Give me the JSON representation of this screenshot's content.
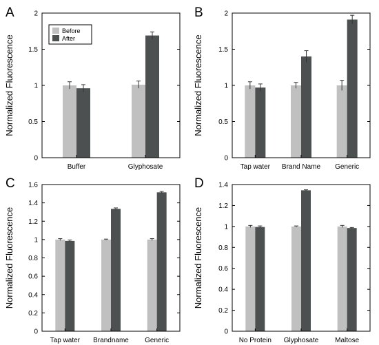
{
  "colors": {
    "before": "#c0c0c0",
    "after": "#4d5050",
    "frame": "#000000",
    "error": "#333333"
  },
  "chart_data": [
    {
      "panel": "A",
      "type": "bar",
      "ylabel": "Normalized Fluorescence",
      "ylim": [
        0,
        2
      ],
      "yticks": [
        "0",
        "0.5",
        "1",
        "1.5",
        "2"
      ],
      "categories": [
        "Buffer",
        "Glyphosate"
      ],
      "series": [
        {
          "name": "Before",
          "values": [
            1.0,
            1.01
          ],
          "errors": [
            0.05,
            0.05
          ]
        },
        {
          "name": "After",
          "values": [
            0.96,
            1.69
          ],
          "errors": [
            0.05,
            0.05
          ]
        }
      ],
      "legend": {
        "position": "top-left",
        "labels": [
          "Before",
          "After"
        ]
      }
    },
    {
      "panel": "B",
      "type": "bar",
      "ylabel": "Normalized Fluorescence",
      "ylim": [
        0,
        2
      ],
      "yticks": [
        "0",
        "0.5",
        "1",
        "1.5",
        "2"
      ],
      "categories": [
        "Tap water",
        "Brand Name",
        "Generic"
      ],
      "series": [
        {
          "values": [
            1.0,
            1.0,
            1.0
          ],
          "errors": [
            0.05,
            0.04,
            0.07
          ]
        },
        {
          "values": [
            0.97,
            1.4,
            1.91
          ],
          "errors": [
            0.05,
            0.08,
            0.06
          ]
        }
      ]
    },
    {
      "panel": "C",
      "type": "bar",
      "ylabel": "Normalized Fluorescence",
      "ylim": [
        0,
        1.6
      ],
      "yticks": [
        "0",
        "0.2",
        "0.4",
        "0.6",
        "0.8",
        "1",
        "1.2",
        "1.4",
        "1.6"
      ],
      "categories": [
        "Tap water",
        "Brandname",
        "Generic"
      ],
      "series": [
        {
          "values": [
            1.0,
            1.0,
            1.0
          ],
          "errors": [
            0.01,
            0.005,
            0.01
          ]
        },
        {
          "values": [
            0.985,
            1.335,
            1.515
          ],
          "errors": [
            0.01,
            0.01,
            0.01
          ]
        }
      ]
    },
    {
      "panel": "D",
      "type": "bar",
      "ylabel": "Normalized Fluorescence",
      "ylim": [
        0,
        1.4
      ],
      "yticks": [
        "0",
        "0.2",
        "0.4",
        "0.6",
        "0.8",
        "1",
        "1.2",
        "1.4"
      ],
      "categories": [
        "No Protein",
        "Glyphosate",
        "Maltose"
      ],
      "series": [
        {
          "values": [
            1.0,
            1.0,
            1.0
          ],
          "errors": [
            0.01,
            0.005,
            0.01
          ]
        },
        {
          "values": [
            0.995,
            1.345,
            0.985
          ],
          "errors": [
            0.01,
            0.005,
            0.005
          ]
        }
      ]
    }
  ]
}
